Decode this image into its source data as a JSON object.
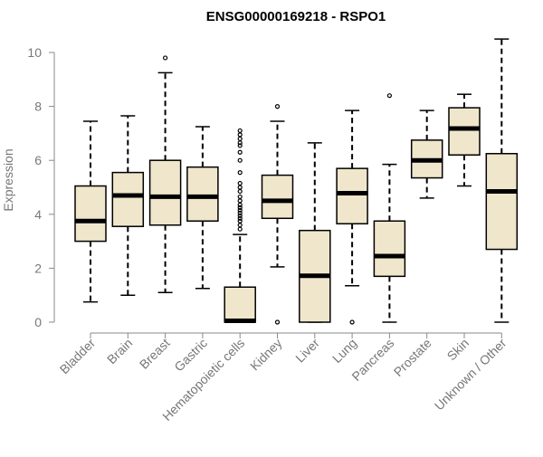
{
  "chart_data": {
    "type": "box",
    "title": "ENSG00000169218 - RSPO1",
    "ylabel": "Expression",
    "xlabel": "",
    "ylim": [
      0,
      10
    ],
    "yticks": [
      0,
      2,
      4,
      6,
      8,
      10
    ],
    "grid": false,
    "box_fill": "#efe6cc",
    "box_stroke": "#000000",
    "axis_color": "#888888",
    "label_color": "#777777",
    "categories": [
      "Bladder",
      "Brain",
      "Breast",
      "Gastric",
      "Hematopoietic cells",
      "Kidney",
      "Liver",
      "Lung",
      "Pancreas",
      "Prostate",
      "Skin",
      "Unknown / Other"
    ],
    "boxes": [
      {
        "whisker_low": 0.75,
        "q1": 3.0,
        "median": 3.75,
        "q3": 5.05,
        "whisker_high": 7.45,
        "outliers": []
      },
      {
        "whisker_low": 1.0,
        "q1": 3.55,
        "median": 4.7,
        "q3": 5.55,
        "whisker_high": 7.65,
        "outliers": []
      },
      {
        "whisker_low": 1.1,
        "q1": 3.6,
        "median": 4.65,
        "q3": 6.0,
        "whisker_high": 9.25,
        "outliers": [
          9.8
        ]
      },
      {
        "whisker_low": 1.25,
        "q1": 3.75,
        "median": 4.65,
        "q3": 5.75,
        "whisker_high": 7.25,
        "outliers": []
      },
      {
        "whisker_low": 0.0,
        "q1": 0.0,
        "median": 0.05,
        "q3": 1.3,
        "whisker_high": 3.25,
        "outliers": [
          3.45,
          3.6,
          3.75,
          3.85,
          3.95,
          4.05,
          4.15,
          4.25,
          4.35,
          4.5,
          4.65,
          4.85,
          5.0,
          5.15,
          5.55,
          6.0,
          6.3,
          6.55,
          6.65,
          6.8,
          6.95,
          7.1
        ]
      },
      {
        "whisker_low": 2.05,
        "q1": 3.85,
        "median": 4.5,
        "q3": 5.45,
        "whisker_high": 7.45,
        "outliers": [
          0.0,
          8.0
        ]
      },
      {
        "whisker_low": 0.0,
        "q1": 0.0,
        "median": 1.72,
        "q3": 3.4,
        "whisker_high": 6.65,
        "outliers": []
      },
      {
        "whisker_low": 1.35,
        "q1": 3.65,
        "median": 4.78,
        "q3": 5.7,
        "whisker_high": 7.85,
        "outliers": [
          0.0
        ]
      },
      {
        "whisker_low": 0.0,
        "q1": 1.7,
        "median": 2.45,
        "q3": 3.75,
        "whisker_high": 5.85,
        "outliers": [
          8.4
        ]
      },
      {
        "whisker_low": 4.6,
        "q1": 5.35,
        "median": 6.0,
        "q3": 6.75,
        "whisker_high": 7.85,
        "outliers": []
      },
      {
        "whisker_low": 5.05,
        "q1": 6.2,
        "median": 7.18,
        "q3": 7.95,
        "whisker_high": 8.45,
        "outliers": []
      },
      {
        "whisker_low": 0.0,
        "q1": 2.7,
        "median": 4.85,
        "q3": 6.25,
        "whisker_high": 10.5,
        "outliers": []
      }
    ]
  }
}
